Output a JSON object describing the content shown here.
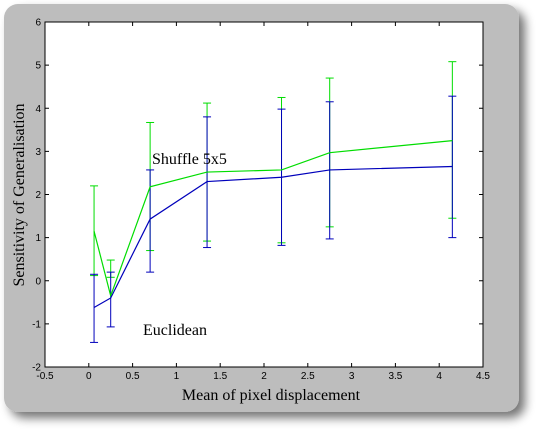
{
  "chart_data": {
    "type": "line",
    "title": "",
    "xlabel": "Mean of pixel displacement",
    "ylabel": "Sensitivity of Generalisation",
    "xlim": [
      -0.5,
      4.5
    ],
    "ylim": [
      -2,
      6
    ],
    "x_ticks": [
      -0.5,
      0,
      0.5,
      1,
      1.5,
      2,
      2.5,
      3,
      3.5,
      4,
      4.5
    ],
    "x_tick_labels": [
      "-0.5",
      "0",
      "0.5",
      "1",
      "1.5",
      "2",
      "2.5",
      "3",
      "3.5",
      "4",
      "4.5"
    ],
    "y_ticks": [
      -2,
      -1,
      0,
      1,
      2,
      3,
      4,
      5,
      6
    ],
    "y_tick_labels": [
      "-2",
      "-1",
      "0",
      "1",
      "2",
      "3",
      "4",
      "5",
      "6"
    ],
    "grid": false,
    "x": [
      0.06,
      0.25,
      0.7,
      1.35,
      2.2,
      2.75,
      4.15
    ],
    "series": [
      {
        "name": "Shuffle 5x5",
        "color": "#00dd00",
        "values": [
          1.15,
          -0.35,
          2.18,
          2.52,
          2.57,
          2.97,
          3.25
        ],
        "err_low": [
          0.12,
          0.08,
          0.7,
          0.92,
          0.88,
          1.25,
          1.45
        ],
        "err_high": [
          2.2,
          0.48,
          3.67,
          4.12,
          4.25,
          4.7,
          5.08
        ]
      },
      {
        "name": "Euclidean",
        "color": "#0000bb",
        "values": [
          -0.62,
          -0.4,
          1.43,
          2.3,
          2.4,
          2.57,
          2.65
        ],
        "err_low": [
          -1.43,
          -1.07,
          0.2,
          0.77,
          0.82,
          0.97,
          1.0
        ],
        "err_high": [
          0.15,
          0.2,
          2.57,
          3.8,
          3.98,
          4.15,
          4.28
        ]
      }
    ],
    "annotations": [
      {
        "text": "Shuffle 5x5",
        "series": "Shuffle 5x5"
      },
      {
        "text": "Euclidean",
        "series": "Euclidean"
      }
    ]
  }
}
